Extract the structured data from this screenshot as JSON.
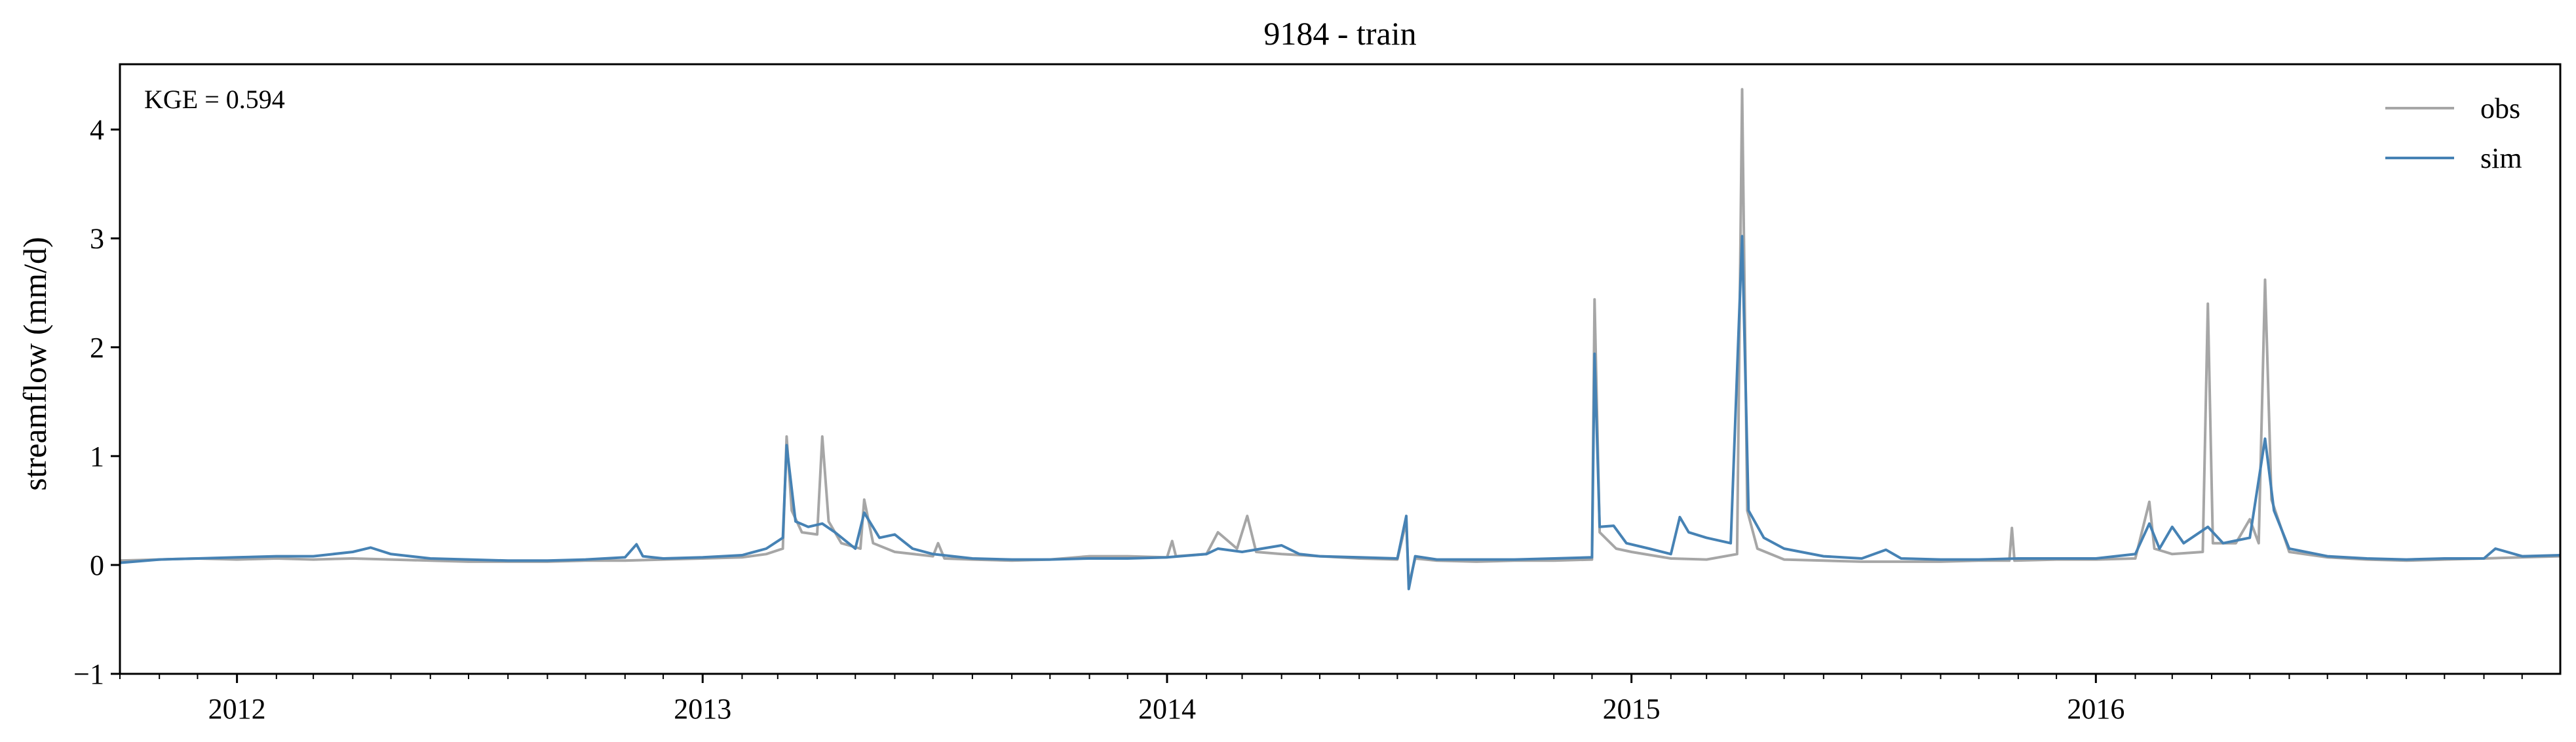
{
  "chart_data": {
    "type": "line",
    "title": "9184 - train",
    "ylabel": "streamflow (mm/d)",
    "xlabel": "",
    "annotation": "KGE = 0.594",
    "ylim": [
      -1,
      4.6
    ],
    "yticks": [
      -1,
      0,
      1,
      2,
      3,
      4
    ],
    "xlim": [
      "2011-10-01",
      "2016-12-31"
    ],
    "xticks": [
      "2012-01-01",
      "2013-01-01",
      "2014-01-01",
      "2015-01-01",
      "2016-01-01"
    ],
    "xtick_labels": [
      "2012",
      "2013",
      "2014",
      "2015",
      "2016"
    ],
    "grid": false,
    "legend": {
      "position": "top-right",
      "entries": [
        "obs",
        "sim"
      ]
    },
    "series": [
      {
        "name": "obs",
        "color": "#a6a6a6",
        "points": [
          [
            "2011-10-01",
            0.04
          ],
          [
            "2011-11-01",
            0.05
          ],
          [
            "2011-12-01",
            0.06
          ],
          [
            "2012-01-01",
            0.05
          ],
          [
            "2012-02-01",
            0.06
          ],
          [
            "2012-03-01",
            0.05
          ],
          [
            "2012-04-01",
            0.06
          ],
          [
            "2012-05-01",
            0.05
          ],
          [
            "2012-06-01",
            0.04
          ],
          [
            "2012-07-01",
            0.03
          ],
          [
            "2012-08-01",
            0.03
          ],
          [
            "2012-09-01",
            0.03
          ],
          [
            "2012-10-01",
            0.04
          ],
          [
            "2012-11-01",
            0.04
          ],
          [
            "2012-12-01",
            0.05
          ],
          [
            "2013-01-01",
            0.06
          ],
          [
            "2013-02-01",
            0.07
          ],
          [
            "2013-02-20",
            0.1
          ],
          [
            "2013-03-05",
            0.15
          ],
          [
            "2013-03-08",
            1.18
          ],
          [
            "2013-03-12",
            0.5
          ],
          [
            "2013-03-20",
            0.3
          ],
          [
            "2013-04-01",
            0.28
          ],
          [
            "2013-04-05",
            1.18
          ],
          [
            "2013-04-10",
            0.4
          ],
          [
            "2013-04-20",
            0.2
          ],
          [
            "2013-05-05",
            0.15
          ],
          [
            "2013-05-08",
            0.6
          ],
          [
            "2013-05-15",
            0.2
          ],
          [
            "2013-06-01",
            0.12
          ],
          [
            "2013-07-01",
            0.08
          ],
          [
            "2013-07-05",
            0.2
          ],
          [
            "2013-07-10",
            0.06
          ],
          [
            "2013-08-01",
            0.05
          ],
          [
            "2013-09-01",
            0.04
          ],
          [
            "2013-10-01",
            0.05
          ],
          [
            "2013-11-01",
            0.08
          ],
          [
            "2013-12-01",
            0.08
          ],
          [
            "2014-01-01",
            0.07
          ],
          [
            "2014-01-05",
            0.22
          ],
          [
            "2014-01-08",
            0.08
          ],
          [
            "2014-02-01",
            0.1
          ],
          [
            "2014-02-10",
            0.3
          ],
          [
            "2014-02-15",
            0.25
          ],
          [
            "2014-02-25",
            0.15
          ],
          [
            "2014-03-05",
            0.45
          ],
          [
            "2014-03-12",
            0.12
          ],
          [
            "2014-04-01",
            0.1
          ],
          [
            "2014-05-01",
            0.08
          ],
          [
            "2014-06-01",
            0.06
          ],
          [
            "2014-07-01",
            0.05
          ],
          [
            "2014-07-08",
            0.4
          ],
          [
            "2014-07-10",
            -0.18
          ],
          [
            "2014-07-15",
            0.06
          ],
          [
            "2014-08-01",
            0.04
          ],
          [
            "2014-09-01",
            0.03
          ],
          [
            "2014-10-01",
            0.04
          ],
          [
            "2014-11-01",
            0.04
          ],
          [
            "2014-12-01",
            0.05
          ],
          [
            "2014-12-03",
            2.44
          ],
          [
            "2014-12-07",
            0.3
          ],
          [
            "2014-12-20",
            0.15
          ],
          [
            "2015-01-01",
            0.12
          ],
          [
            "2015-02-01",
            0.06
          ],
          [
            "2015-03-01",
            0.05
          ],
          [
            "2015-03-25",
            0.1
          ],
          [
            "2015-03-29",
            4.37
          ],
          [
            "2015-04-02",
            0.5
          ],
          [
            "2015-04-10",
            0.15
          ],
          [
            "2015-05-01",
            0.05
          ],
          [
            "2015-06-01",
            0.04
          ],
          [
            "2015-07-01",
            0.03
          ],
          [
            "2015-08-01",
            0.03
          ],
          [
            "2015-09-01",
            0.03
          ],
          [
            "2015-10-01",
            0.04
          ],
          [
            "2015-10-25",
            0.04
          ],
          [
            "2015-10-27",
            0.34
          ],
          [
            "2015-10-29",
            0.04
          ],
          [
            "2015-12-01",
            0.05
          ],
          [
            "2016-01-01",
            0.05
          ],
          [
            "2016-02-01",
            0.06
          ],
          [
            "2016-02-12",
            0.58
          ],
          [
            "2016-02-16",
            0.15
          ],
          [
            "2016-03-01",
            0.1
          ],
          [
            "2016-03-25",
            0.12
          ],
          [
            "2016-03-29",
            2.4
          ],
          [
            "2016-04-02",
            0.2
          ],
          [
            "2016-04-20",
            0.2
          ],
          [
            "2016-05-01",
            0.42
          ],
          [
            "2016-05-08",
            0.2
          ],
          [
            "2016-05-13",
            2.62
          ],
          [
            "2016-05-18",
            0.6
          ],
          [
            "2016-06-01",
            0.12
          ],
          [
            "2016-07-01",
            0.07
          ],
          [
            "2016-08-01",
            0.05
          ],
          [
            "2016-09-01",
            0.04
          ],
          [
            "2016-10-01",
            0.05
          ],
          [
            "2016-11-01",
            0.06
          ],
          [
            "2016-12-01",
            0.07
          ],
          [
            "2016-12-31",
            0.08
          ]
        ]
      },
      {
        "name": "sim",
        "color": "#4682b4",
        "points": [
          [
            "2011-10-01",
            0.02
          ],
          [
            "2011-11-01",
            0.05
          ],
          [
            "2011-12-01",
            0.06
          ],
          [
            "2012-01-01",
            0.07
          ],
          [
            "2012-02-01",
            0.08
          ],
          [
            "2012-03-01",
            0.08
          ],
          [
            "2012-04-01",
            0.12
          ],
          [
            "2012-04-15",
            0.16
          ],
          [
            "2012-05-01",
            0.1
          ],
          [
            "2012-06-01",
            0.06
          ],
          [
            "2012-07-01",
            0.05
          ],
          [
            "2012-08-01",
            0.04
          ],
          [
            "2012-09-01",
            0.04
          ],
          [
            "2012-10-01",
            0.05
          ],
          [
            "2012-11-01",
            0.07
          ],
          [
            "2012-11-10",
            0.19
          ],
          [
            "2012-11-15",
            0.08
          ],
          [
            "2012-12-01",
            0.06
          ],
          [
            "2013-01-01",
            0.07
          ],
          [
            "2013-02-01",
            0.09
          ],
          [
            "2013-02-20",
            0.15
          ],
          [
            "2013-03-05",
            0.25
          ],
          [
            "2013-03-08",
            1.1
          ],
          [
            "2013-03-15",
            0.4
          ],
          [
            "2013-03-25",
            0.35
          ],
          [
            "2013-04-05",
            0.38
          ],
          [
            "2013-04-15",
            0.3
          ],
          [
            "2013-05-01",
            0.15
          ],
          [
            "2013-05-08",
            0.48
          ],
          [
            "2013-05-20",
            0.25
          ],
          [
            "2013-06-01",
            0.28
          ],
          [
            "2013-06-15",
            0.15
          ],
          [
            "2013-07-01",
            0.1
          ],
          [
            "2013-08-01",
            0.06
          ],
          [
            "2013-09-01",
            0.05
          ],
          [
            "2013-10-01",
            0.05
          ],
          [
            "2013-11-01",
            0.06
          ],
          [
            "2013-12-01",
            0.06
          ],
          [
            "2014-01-01",
            0.07
          ],
          [
            "2014-02-01",
            0.1
          ],
          [
            "2014-02-10",
            0.15
          ],
          [
            "2014-03-01",
            0.12
          ],
          [
            "2014-04-01",
            0.18
          ],
          [
            "2014-04-15",
            0.1
          ],
          [
            "2014-05-01",
            0.08
          ],
          [
            "2014-06-01",
            0.07
          ],
          [
            "2014-07-01",
            0.06
          ],
          [
            "2014-07-08",
            0.45
          ],
          [
            "2014-07-10",
            -0.22
          ],
          [
            "2014-07-15",
            0.08
          ],
          [
            "2014-08-01",
            0.05
          ],
          [
            "2014-09-01",
            0.05
          ],
          [
            "2014-10-01",
            0.05
          ],
          [
            "2014-11-01",
            0.06
          ],
          [
            "2014-12-01",
            0.07
          ],
          [
            "2014-12-03",
            1.94
          ],
          [
            "2014-12-07",
            0.35
          ],
          [
            "2014-12-18",
            0.36
          ],
          [
            "2014-12-28",
            0.2
          ],
          [
            "2015-01-15",
            0.15
          ],
          [
            "2015-02-01",
            0.1
          ],
          [
            "2015-02-08",
            0.44
          ],
          [
            "2015-02-15",
            0.3
          ],
          [
            "2015-03-01",
            0.25
          ],
          [
            "2015-03-20",
            0.2
          ],
          [
            "2015-03-29",
            3.02
          ],
          [
            "2015-04-03",
            0.5
          ],
          [
            "2015-04-15",
            0.25
          ],
          [
            "2015-05-01",
            0.15
          ],
          [
            "2015-06-01",
            0.08
          ],
          [
            "2015-07-01",
            0.06
          ],
          [
            "2015-07-20",
            0.14
          ],
          [
            "2015-08-01",
            0.06
          ],
          [
            "2015-09-01",
            0.05
          ],
          [
            "2015-10-01",
            0.05
          ],
          [
            "2015-11-01",
            0.06
          ],
          [
            "2015-12-01",
            0.06
          ],
          [
            "2016-01-01",
            0.06
          ],
          [
            "2016-02-01",
            0.1
          ],
          [
            "2016-02-12",
            0.38
          ],
          [
            "2016-02-20",
            0.15
          ],
          [
            "2016-03-01",
            0.35
          ],
          [
            "2016-03-10",
            0.2
          ],
          [
            "2016-03-29",
            0.35
          ],
          [
            "2016-04-10",
            0.2
          ],
          [
            "2016-05-01",
            0.25
          ],
          [
            "2016-05-13",
            1.16
          ],
          [
            "2016-05-20",
            0.5
          ],
          [
            "2016-06-01",
            0.15
          ],
          [
            "2016-07-01",
            0.08
          ],
          [
            "2016-08-01",
            0.06
          ],
          [
            "2016-09-01",
            0.05
          ],
          [
            "2016-10-01",
            0.06
          ],
          [
            "2016-11-01",
            0.06
          ],
          [
            "2016-11-10",
            0.15
          ],
          [
            "2016-12-01",
            0.08
          ],
          [
            "2016-12-31",
            0.09
          ]
        ]
      }
    ]
  }
}
